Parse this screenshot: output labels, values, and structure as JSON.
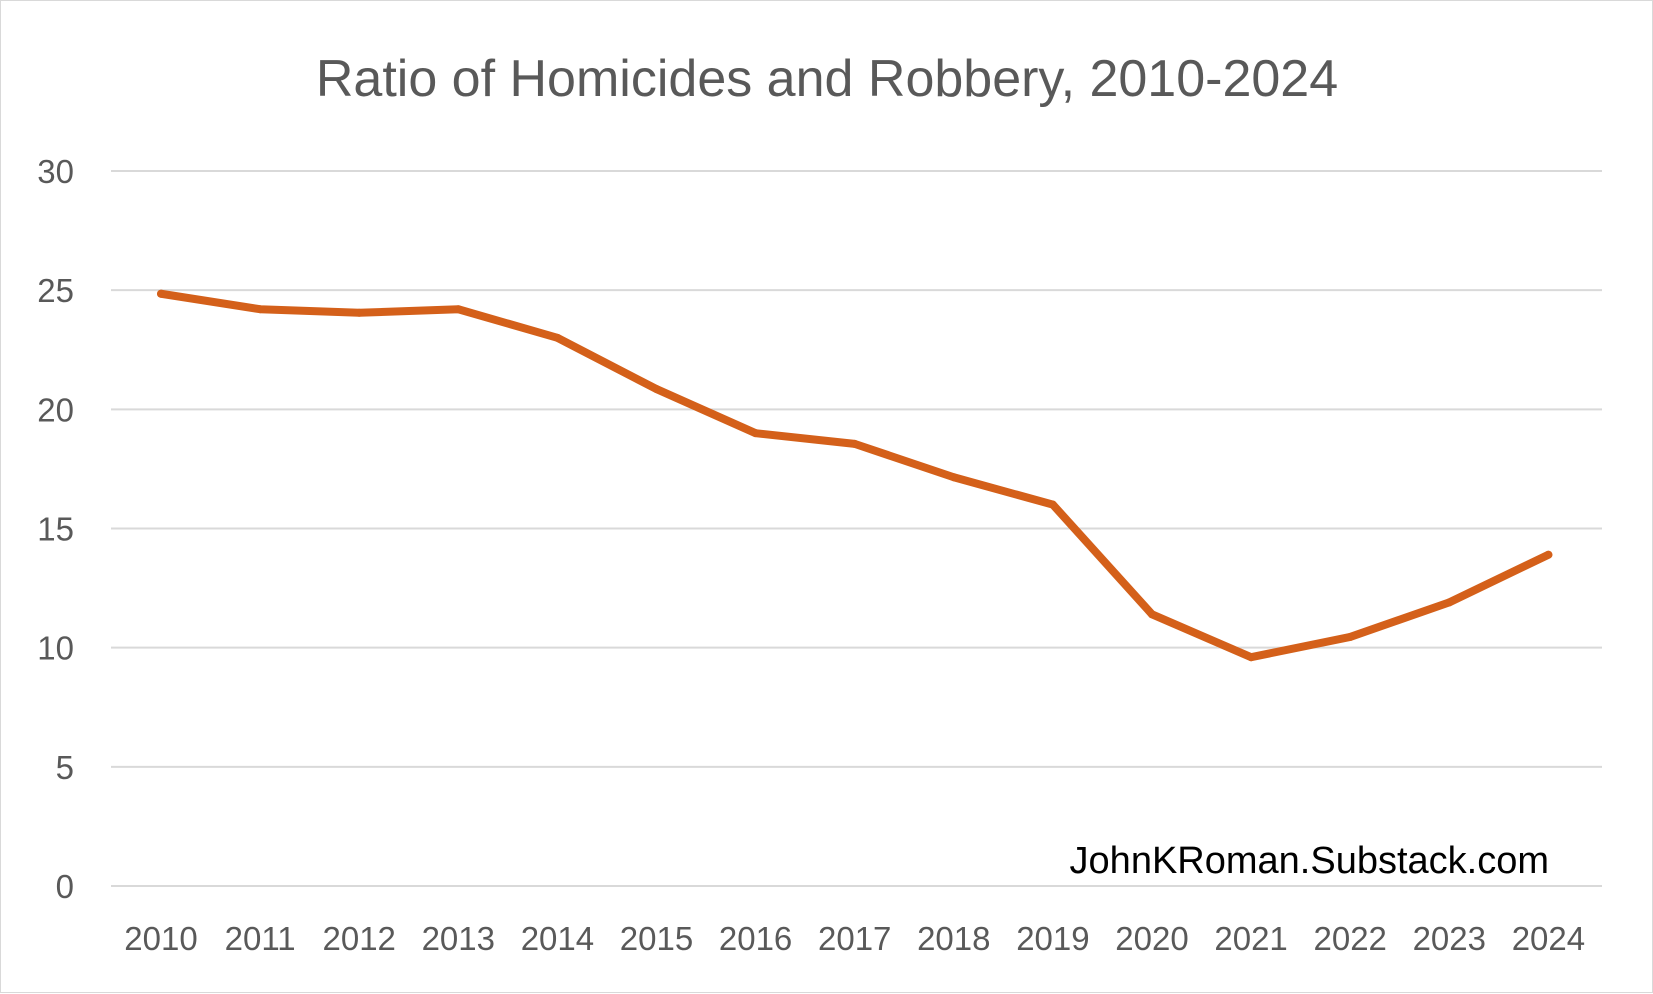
{
  "chart_data": {
    "type": "line",
    "title": "Ratio of Homicides and Robbery, 2010-2024",
    "xlabel": "",
    "ylabel": "",
    "categories": [
      "2010",
      "2011",
      "2012",
      "2013",
      "2014",
      "2015",
      "2016",
      "2017",
      "2018",
      "2019",
      "2020",
      "2021",
      "2022",
      "2023",
      "2024"
    ],
    "series": [
      {
        "values": [
          24.85,
          24.2,
          24.05,
          24.2,
          23.0,
          20.85,
          19.0,
          18.55,
          17.15,
          16.0,
          11.4,
          9.6,
          10.45,
          11.9,
          13.9
        ],
        "color": "#D4601A"
      }
    ],
    "ylim": [
      0,
      30
    ],
    "yticks": [
      0,
      5,
      10,
      15,
      20,
      25,
      30
    ],
    "grid": true,
    "legend": "none"
  },
  "watermark": "JohnKRoman.Substack.com",
  "colors": {
    "gridline": "#d9d9d9",
    "text": "#595959",
    "series": "#D4601A"
  }
}
